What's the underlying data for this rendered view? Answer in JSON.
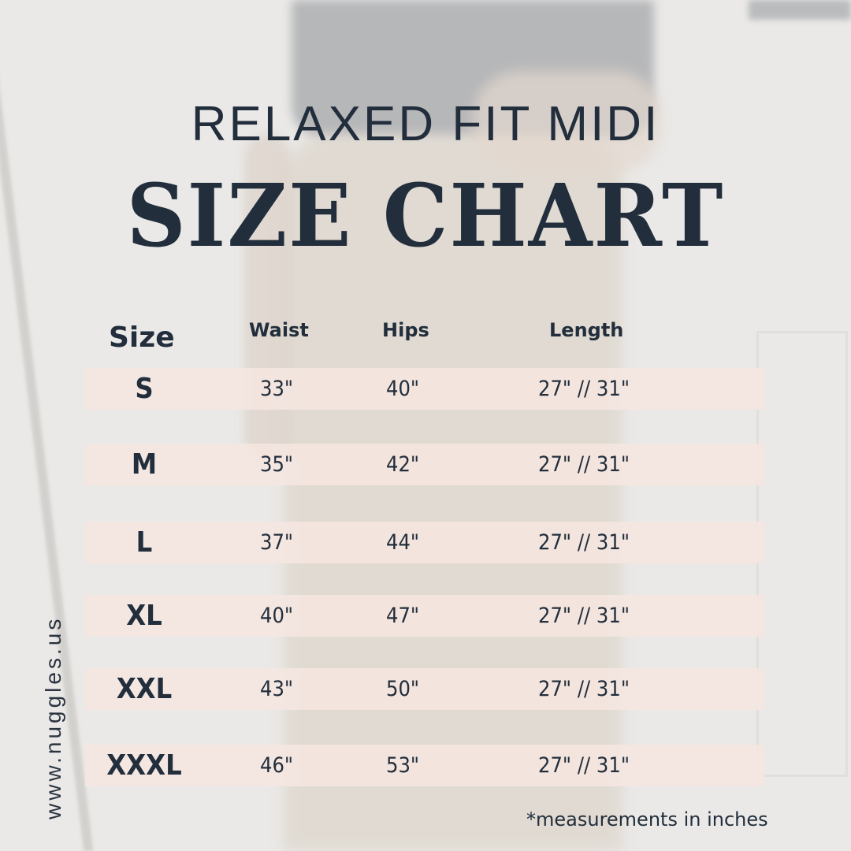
{
  "title_line1": "RELAXED FIT MIDI",
  "title_line2": "SIZE CHART",
  "headers": {
    "size": "Size",
    "waist": "Waist",
    "hips": "Hips",
    "length": "Length"
  },
  "rows": [
    {
      "size": "S",
      "waist": "33\"",
      "hips": "40\"",
      "length": "27\" // 31\""
    },
    {
      "size": "M",
      "waist": "35\"",
      "hips": "42\"",
      "length": "27\" // 31\""
    },
    {
      "size": "L",
      "waist": "37\"",
      "hips": "44\"",
      "length": "27\" // 31\""
    },
    {
      "size": "XL",
      "waist": "40\"",
      "hips": "47\"",
      "length": "27\" // 31\""
    },
    {
      "size": "XXL",
      "waist": "43\"",
      "hips": "50\"",
      "length": "27\" // 31\""
    },
    {
      "size": "XXXL",
      "waist": "46\"",
      "hips": "53\"",
      "length": "27\" // 31\""
    }
  ],
  "note": "*measurements in inches",
  "website": "www.nuggles.us",
  "colors": {
    "text": "#222e3c",
    "row_band": "#f6e6e0",
    "background": "#eae9e7"
  }
}
